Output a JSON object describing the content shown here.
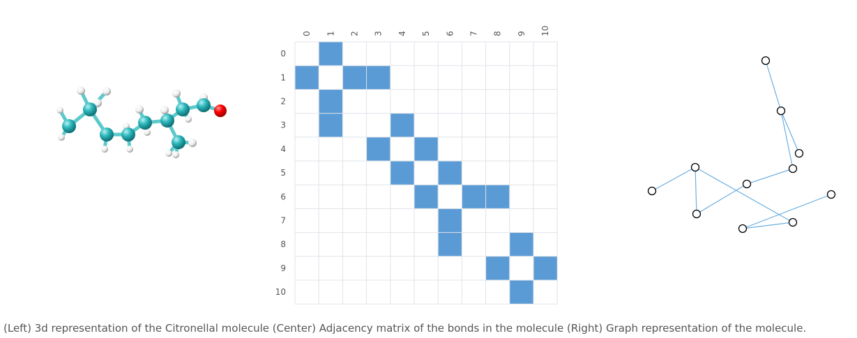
{
  "caption": "(Left) 3d representation of the Citronellal molecule (Center) Adjacency matrix of the bonds in the molecule (Right) Graph representation of the molecule.",
  "colors": {
    "cell_fill": "#5b9bd5",
    "grid_line": "#dfe3e8",
    "label": "#555555",
    "carbon": "#2cb8bc",
    "hydrogen": "#f2f2f2",
    "oxygen": "#ff0000",
    "edge": "#6aaee0",
    "node_stroke": "#000000"
  },
  "matrix": {
    "labels": [
      "0",
      "1",
      "2",
      "3",
      "4",
      "5",
      "6",
      "7",
      "8",
      "9",
      "10"
    ],
    "edges": [
      [
        0,
        1
      ],
      [
        1,
        2
      ],
      [
        1,
        3
      ],
      [
        3,
        4
      ],
      [
        4,
        5
      ],
      [
        5,
        6
      ],
      [
        6,
        7
      ],
      [
        6,
        8
      ],
      [
        8,
        9
      ],
      [
        9,
        10
      ]
    ]
  },
  "molecule": {
    "name": "Citronellal",
    "atom_types": [
      "carbon",
      "hydrogen",
      "oxygen"
    ]
  },
  "graph": {
    "node_count": 11
  }
}
